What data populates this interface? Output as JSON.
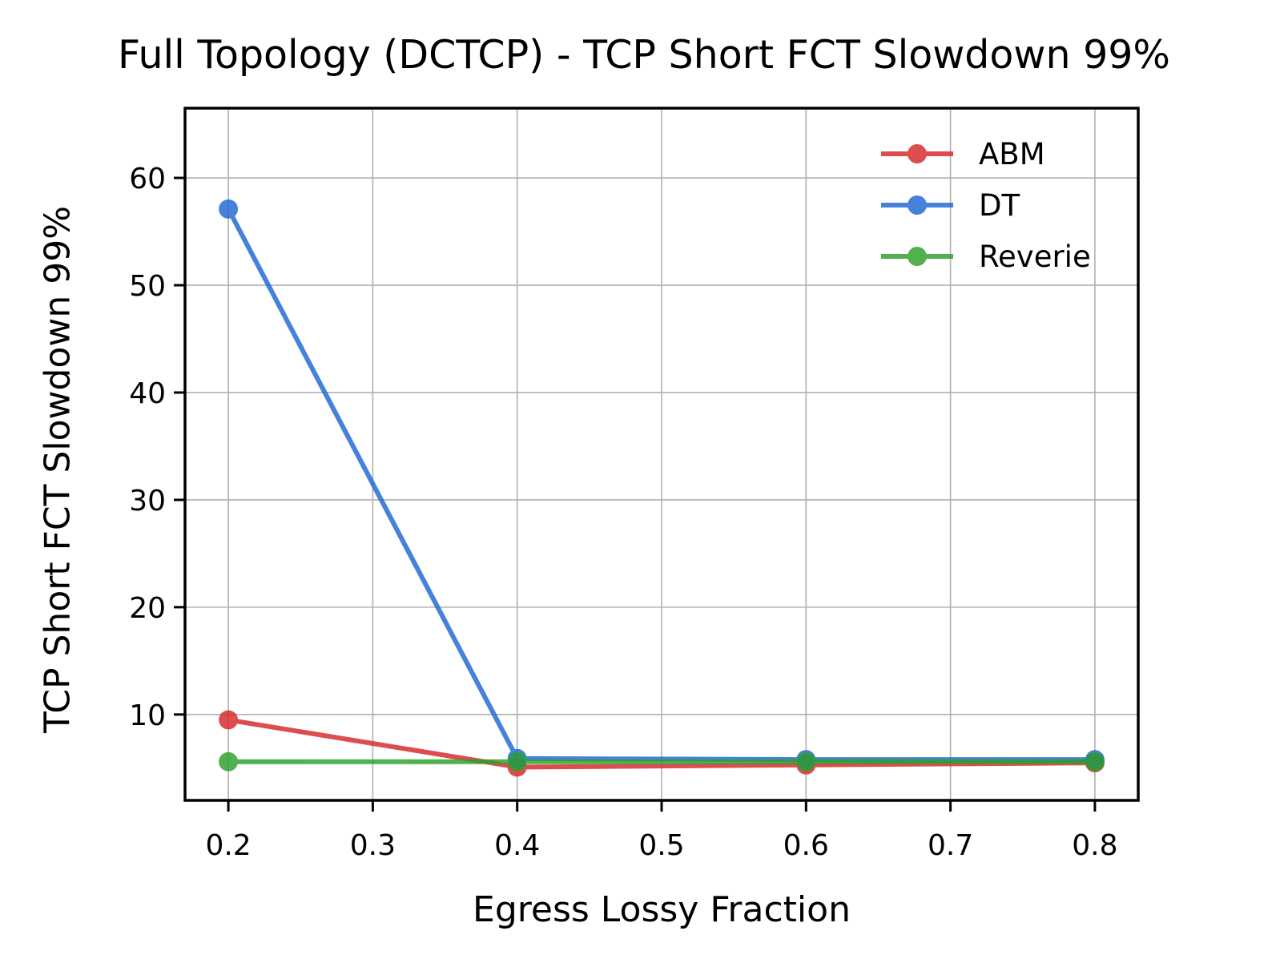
{
  "chart_data": {
    "type": "line",
    "title": "Full Topology (DCTCP) - TCP Short FCT Slowdown 99%",
    "xlabel": "Egress Lossy Fraction",
    "ylabel": "TCP Short FCT Slowdown 99%",
    "x": [
      0.2,
      0.4,
      0.6,
      0.8
    ],
    "xlim": [
      0.17,
      0.83
    ],
    "ylim": [
      2,
      66.5
    ],
    "xticks": [
      0.2,
      0.3,
      0.4,
      0.5,
      0.6,
      0.7,
      0.8
    ],
    "xtick_labels": [
      "0.2",
      "0.3",
      "0.4",
      "0.5",
      "0.6",
      "0.7",
      "0.8"
    ],
    "yticks": [
      10,
      20,
      30,
      40,
      50,
      60
    ],
    "ytick_labels": [
      "10",
      "20",
      "30",
      "40",
      "50",
      "60"
    ],
    "grid": true,
    "legend_position": "top-right",
    "series": [
      {
        "name": "ABM",
        "color": "#d62728",
        "values": [
          9.5,
          5.1,
          5.3,
          5.5
        ]
      },
      {
        "name": "DT",
        "color": "#1f67d2",
        "values": [
          57.1,
          5.9,
          5.8,
          5.8
        ]
      },
      {
        "name": "Reverie",
        "color": "#2ca02c",
        "values": [
          5.6,
          5.6,
          5.6,
          5.6
        ]
      }
    ]
  }
}
